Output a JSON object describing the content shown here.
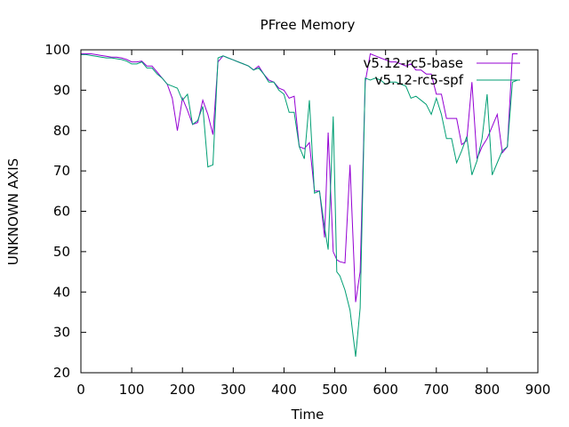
{
  "chart_data": {
    "type": "line",
    "title": "PFree Memory",
    "xlabel": "Time",
    "ylabel": "UNKNOWN AXIS",
    "xlim": [
      0,
      900
    ],
    "ylim": [
      20,
      100
    ],
    "xticks": [
      0,
      100,
      200,
      300,
      400,
      500,
      600,
      700,
      800,
      900
    ],
    "yticks": [
      20,
      30,
      40,
      50,
      60,
      70,
      80,
      90,
      100
    ],
    "legend_position": "top-right",
    "grid": false,
    "series": [
      {
        "name": "v5.12-rc5-base",
        "color": "#9400d3",
        "points": [
          [
            0,
            99
          ],
          [
            10,
            99
          ],
          [
            20,
            99
          ],
          [
            30,
            98.8
          ],
          [
            40,
            98.6
          ],
          [
            50,
            98.4
          ],
          [
            60,
            98.2
          ],
          [
            70,
            98.2
          ],
          [
            80,
            98
          ],
          [
            90,
            97.6
          ],
          [
            100,
            97
          ],
          [
            110,
            97
          ],
          [
            120,
            97.2
          ],
          [
            130,
            96
          ],
          [
            140,
            96
          ],
          [
            150,
            94.5
          ],
          [
            160,
            93
          ],
          [
            170,
            91.5
          ],
          [
            180,
            88
          ],
          [
            190,
            80
          ],
          [
            200,
            88
          ],
          [
            210,
            85
          ],
          [
            220,
            81.5
          ],
          [
            230,
            82
          ],
          [
            240,
            87.5
          ],
          [
            250,
            84
          ],
          [
            260,
            79
          ],
          [
            270,
            97
          ],
          [
            280,
            98.5
          ],
          [
            290,
            98
          ],
          [
            300,
            97.5
          ],
          [
            310,
            97
          ],
          [
            320,
            96.5
          ],
          [
            330,
            96
          ],
          [
            340,
            95
          ],
          [
            350,
            96
          ],
          [
            360,
            94
          ],
          [
            370,
            92.5
          ],
          [
            380,
            92
          ],
          [
            390,
            90.5
          ],
          [
            400,
            90
          ],
          [
            410,
            88
          ],
          [
            420,
            88.5
          ],
          [
            430,
            76
          ],
          [
            440,
            75.5
          ],
          [
            450,
            77
          ],
          [
            460,
            65
          ],
          [
            470,
            65
          ],
          [
            480,
            53.5
          ],
          [
            487,
            79.5
          ],
          [
            497,
            50
          ],
          [
            504,
            48
          ],
          [
            510,
            47.5
          ],
          [
            520,
            47.2
          ],
          [
            530,
            71.5
          ],
          [
            541,
            37.5
          ],
          [
            550,
            45
          ],
          [
            560,
            92
          ],
          [
            570,
            99
          ],
          [
            580,
            98.5
          ],
          [
            590,
            98
          ],
          [
            600,
            97.5
          ],
          [
            610,
            97
          ],
          [
            620,
            97
          ],
          [
            630,
            96.5
          ],
          [
            640,
            96
          ],
          [
            650,
            96.5
          ],
          [
            660,
            95
          ],
          [
            670,
            95
          ],
          [
            680,
            94
          ],
          [
            690,
            94
          ],
          [
            700,
            89
          ],
          [
            710,
            89
          ],
          [
            720,
            83
          ],
          [
            730,
            83
          ],
          [
            740,
            83
          ],
          [
            750,
            76.5
          ],
          [
            760,
            77.5
          ],
          [
            770,
            92
          ],
          [
            780,
            73
          ],
          [
            790,
            76
          ],
          [
            800,
            78
          ],
          [
            810,
            81
          ],
          [
            820,
            84
          ],
          [
            830,
            74.5
          ],
          [
            840,
            76
          ],
          [
            850,
            99
          ],
          [
            860,
            99
          ]
        ]
      },
      {
        "name": "v5.12-rc5-spf",
        "color": "#009e73",
        "points": [
          [
            0,
            98.8
          ],
          [
            10,
            98.8
          ],
          [
            20,
            98.6
          ],
          [
            30,
            98.4
          ],
          [
            40,
            98.2
          ],
          [
            50,
            98
          ],
          [
            60,
            98
          ],
          [
            70,
            97.8
          ],
          [
            80,
            97.6
          ],
          [
            90,
            97.2
          ],
          [
            100,
            96.5
          ],
          [
            110,
            96.5
          ],
          [
            120,
            97
          ],
          [
            130,
            95.5
          ],
          [
            140,
            95.5
          ],
          [
            150,
            94
          ],
          [
            160,
            93
          ],
          [
            170,
            91.5
          ],
          [
            180,
            91
          ],
          [
            190,
            90.5
          ],
          [
            200,
            87.5
          ],
          [
            210,
            89
          ],
          [
            220,
            81.5
          ],
          [
            230,
            82.5
          ],
          [
            240,
            86
          ],
          [
            250,
            71
          ],
          [
            260,
            71.5
          ],
          [
            270,
            98
          ],
          [
            280,
            98.5
          ],
          [
            290,
            98
          ],
          [
            300,
            97.5
          ],
          [
            310,
            97
          ],
          [
            320,
            96.5
          ],
          [
            330,
            96
          ],
          [
            340,
            95
          ],
          [
            350,
            95.5
          ],
          [
            360,
            94
          ],
          [
            370,
            92
          ],
          [
            380,
            92
          ],
          [
            390,
            90
          ],
          [
            400,
            89
          ],
          [
            410,
            84.5
          ],
          [
            420,
            84.5
          ],
          [
            430,
            76
          ],
          [
            440,
            73
          ],
          [
            450,
            87.5
          ],
          [
            460,
            64.5
          ],
          [
            470,
            65
          ],
          [
            480,
            56
          ],
          [
            487,
            50.5
          ],
          [
            497,
            83.5
          ],
          [
            504,
            45
          ],
          [
            510,
            44
          ],
          [
            520,
            40.5
          ],
          [
            530,
            35.5
          ],
          [
            541,
            24
          ],
          [
            550,
            36
          ],
          [
            560,
            93
          ],
          [
            570,
            92.5
          ],
          [
            580,
            93
          ],
          [
            590,
            92.5
          ],
          [
            600,
            91.5
          ],
          [
            610,
            92
          ],
          [
            620,
            92
          ],
          [
            630,
            91.5
          ],
          [
            640,
            91
          ],
          [
            650,
            88
          ],
          [
            660,
            88.5
          ],
          [
            670,
            87.5
          ],
          [
            680,
            86.5
          ],
          [
            690,
            84
          ],
          [
            700,
            88
          ],
          [
            710,
            84
          ],
          [
            720,
            78
          ],
          [
            730,
            78
          ],
          [
            740,
            72
          ],
          [
            750,
            75
          ],
          [
            760,
            78.5
          ],
          [
            770,
            69
          ],
          [
            780,
            72.5
          ],
          [
            790,
            78
          ],
          [
            800,
            89
          ],
          [
            810,
            69
          ],
          [
            820,
            72
          ],
          [
            830,
            75
          ],
          [
            840,
            76
          ],
          [
            850,
            92
          ],
          [
            860,
            92.5
          ]
        ]
      }
    ]
  }
}
